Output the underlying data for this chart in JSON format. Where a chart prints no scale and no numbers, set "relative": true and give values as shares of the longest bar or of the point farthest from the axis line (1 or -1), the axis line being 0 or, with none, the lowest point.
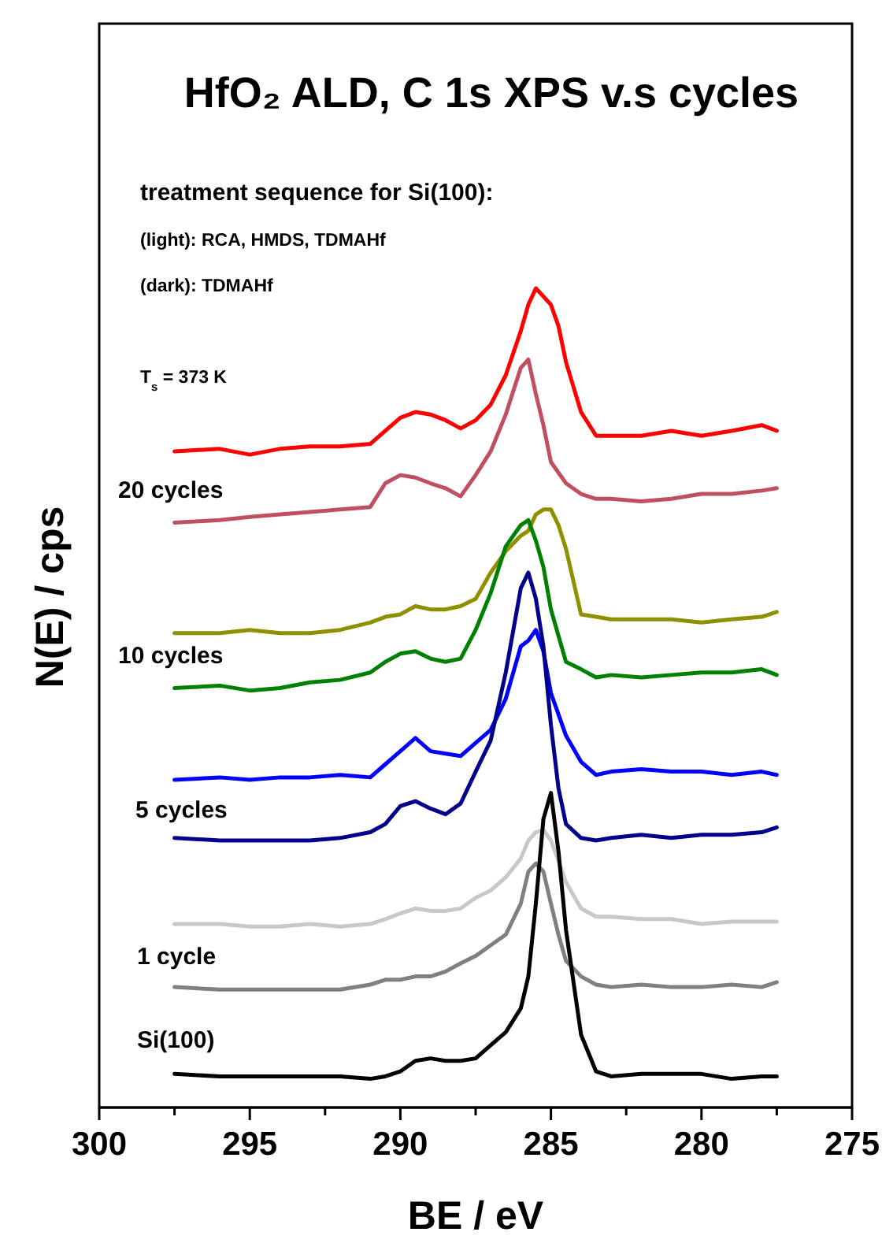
{
  "chart_data": {
    "type": "line",
    "title": "HfO₂ ALD, C 1s XPS v.s cycles",
    "xlabel": "BE / eV",
    "ylabel": "N(E) / cps",
    "relative": true,
    "xlim": [
      300,
      275
    ],
    "xticks": [
      300,
      {
        "value": 297.5,
        "label": null
      },
      295,
      {
        "value": 292.5,
        "label": null
      },
      290,
      {
        "value": 287.5,
        "label": null
      },
      285,
      {
        "value": 282.5,
        "label": null
      },
      280,
      {
        "value": 277.5,
        "label": null
      },
      275
    ],
    "x": [
      297.5,
      296,
      295,
      294,
      293,
      292,
      291,
      290.5,
      290,
      289.5,
      289,
      288.5,
      288,
      287.5,
      287,
      286.5,
      286,
      285.75,
      285.5,
      285.25,
      285,
      284.75,
      284.5,
      284,
      283.5,
      283,
      282,
      281,
      280,
      279,
      278,
      277.5
    ],
    "series": [
      {
        "color": "#ff0000",
        "values": [
          0.801,
          0.804,
          0.797,
          0.804,
          0.807,
          0.807,
          0.81,
          0.826,
          0.842,
          0.849,
          0.846,
          0.839,
          0.829,
          0.839,
          0.858,
          0.894,
          0.948,
          0.98,
          1,
          0.99,
          0.98,
          0.954,
          0.91,
          0.849,
          0.82,
          0.82,
          0.82,
          0.826,
          0.82,
          0.826,
          0.833,
          0.826
        ]
      },
      {
        "color": "#c0505f",
        "values": [
          0.714,
          0.717,
          0.721,
          0.724,
          0.727,
          0.73,
          0.733,
          0.762,
          0.772,
          0.769,
          0.762,
          0.756,
          0.746,
          0.772,
          0.801,
          0.846,
          0.903,
          0.913,
          0.871,
          0.833,
          0.788,
          0.775,
          0.762,
          0.749,
          0.743,
          0.743,
          0.74,
          0.743,
          0.749,
          0.749,
          0.753,
          0.756
        ]
      },
      {
        "color": "#8f8f00",
        "values": [
          0.579,
          0.579,
          0.583,
          0.579,
          0.579,
          0.583,
          0.592,
          0.599,
          0.602,
          0.612,
          0.608,
          0.608,
          0.612,
          0.621,
          0.653,
          0.679,
          0.698,
          0.704,
          0.724,
          0.73,
          0.73,
          0.711,
          0.682,
          0.602,
          0.599,
          0.596,
          0.596,
          0.596,
          0.592,
          0.596,
          0.599,
          0.605
        ]
      },
      {
        "color": "#008000",
        "values": [
          0.512,
          0.515,
          0.509,
          0.512,
          0.519,
          0.522,
          0.531,
          0.544,
          0.554,
          0.557,
          0.548,
          0.544,
          0.548,
          0.583,
          0.628,
          0.685,
          0.711,
          0.717,
          0.692,
          0.66,
          0.608,
          0.576,
          0.544,
          0.535,
          0.525,
          0.528,
          0.525,
          0.528,
          0.531,
          0.531,
          0.535,
          0.528
        ]
      },
      {
        "color": "#0000ff",
        "values": [
          0.4,
          0.403,
          0.4,
          0.403,
          0.403,
          0.406,
          0.403,
          0.419,
          0.435,
          0.451,
          0.435,
          0.432,
          0.429,
          0.445,
          0.461,
          0.499,
          0.563,
          0.57,
          0.583,
          0.557,
          0.506,
          0.48,
          0.454,
          0.422,
          0.406,
          0.41,
          0.413,
          0.41,
          0.41,
          0.406,
          0.41,
          0.406
        ]
      },
      {
        "color": "#00008b",
        "values": [
          0.329,
          0.326,
          0.326,
          0.326,
          0.326,
          0.329,
          0.336,
          0.346,
          0.368,
          0.374,
          0.365,
          0.358,
          0.371,
          0.41,
          0.448,
          0.531,
          0.634,
          0.653,
          0.621,
          0.563,
          0.467,
          0.39,
          0.346,
          0.329,
          0.326,
          0.329,
          0.333,
          0.329,
          0.333,
          0.333,
          0.336,
          0.342
        ]
      },
      {
        "color": "#c8c8c8",
        "values": [
          0.224,
          0.224,
          0.221,
          0.221,
          0.224,
          0.221,
          0.224,
          0.23,
          0.237,
          0.243,
          0.24,
          0.24,
          0.243,
          0.256,
          0.265,
          0.281,
          0.304,
          0.326,
          0.336,
          0.339,
          0.326,
          0.301,
          0.275,
          0.243,
          0.233,
          0.233,
          0.23,
          0.23,
          0.224,
          0.227,
          0.227,
          0.227
        ]
      },
      {
        "color": "#808080",
        "values": [
          0.147,
          0.144,
          0.144,
          0.144,
          0.144,
          0.144,
          0.15,
          0.156,
          0.156,
          0.16,
          0.16,
          0.166,
          0.176,
          0.185,
          0.198,
          0.211,
          0.249,
          0.288,
          0.298,
          0.288,
          0.249,
          0.211,
          0.179,
          0.16,
          0.15,
          0.147,
          0.15,
          0.147,
          0.147,
          0.15,
          0.147,
          0.153
        ]
      },
      {
        "color": "#000000",
        "values": [
          0.041,
          0.038,
          0.038,
          0.038,
          0.038,
          0.038,
          0.035,
          0.038,
          0.044,
          0.057,
          0.06,
          0.057,
          0.057,
          0.06,
          0.076,
          0.092,
          0.121,
          0.16,
          0.249,
          0.352,
          0.384,
          0.313,
          0.217,
          0.089,
          0.044,
          0.038,
          0.041,
          0.041,
          0.041,
          0.035,
          0.038,
          0.038
        ]
      }
    ],
    "annotations": [
      "treatment sequence for Si(100):",
      "(light): RCA, HMDS, TDMAHf",
      "(dark): TDMAHf",
      "T$_{s}$ = 373 K",
      "20 cycles",
      "10 cycles",
      "5 cycles",
      "1 cycle",
      "Si(100)"
    ]
  }
}
